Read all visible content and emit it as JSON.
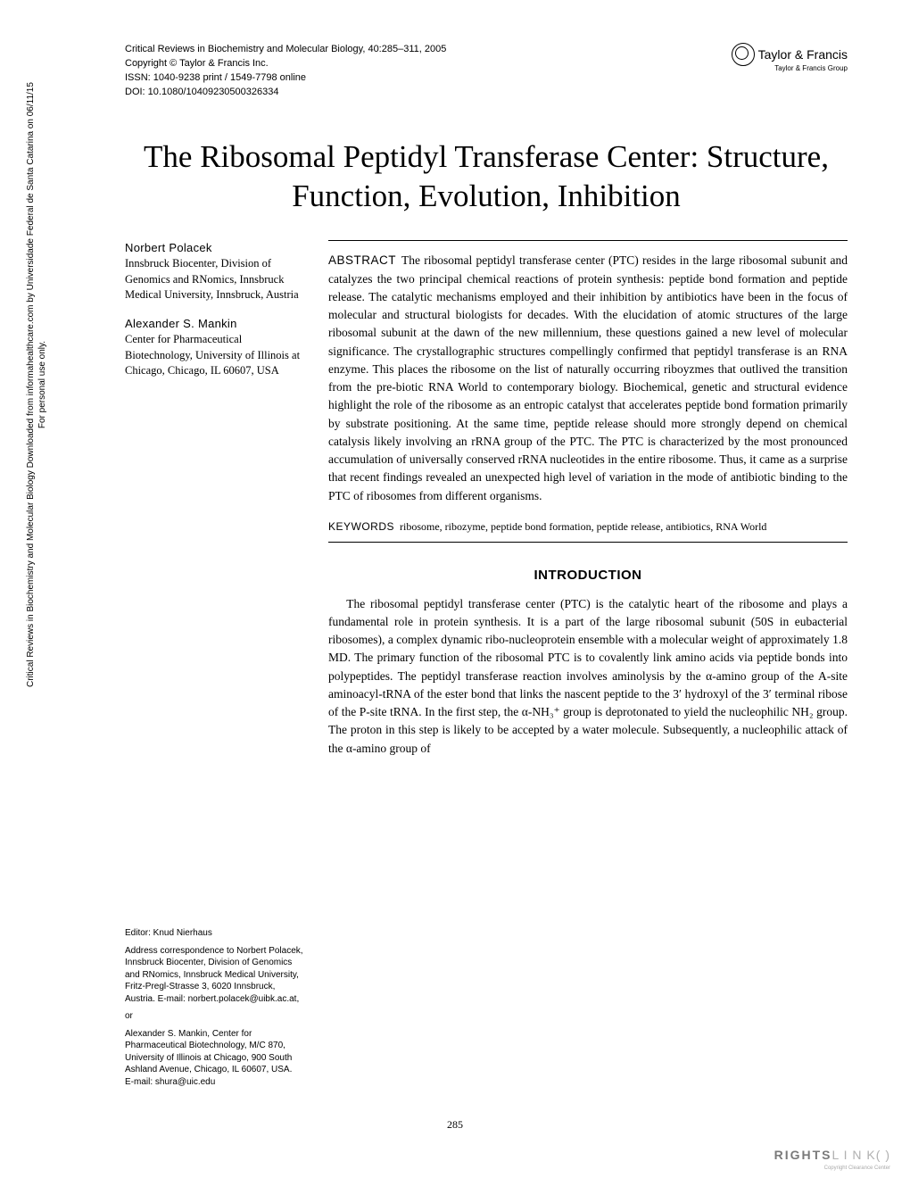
{
  "header": {
    "journal_line": "Critical Reviews in Biochemistry and Molecular Biology, 40:285–311, 2005",
    "copyright_line": "Copyright © Taylor & Francis Inc.",
    "issn_line": "ISSN: 1040-9238 print / 1549-7798 online",
    "doi_line": "DOI: 10.1080/10409230500326334"
  },
  "publisher": {
    "name": "Taylor & Francis",
    "sub": "Taylor & Francis Group"
  },
  "vertical_note": {
    "line1": "Critical Reviews in Biochemistry and Molecular Biology Downloaded from informahealthcare.com by Universidade Federal de Santa Catarina on 06/11/15",
    "line2": "For personal use only."
  },
  "title": "The Ribosomal Peptidyl Transferase Center: Structure, Function, Evolution, Inhibition",
  "authors": [
    {
      "name": "Norbert Polacek",
      "affil": "Innsbruck Biocenter, Division of Genomics and RNomics, Innsbruck Medical University, Innsbruck, Austria"
    },
    {
      "name": "Alexander S. Mankin",
      "affil": "Center for Pharmaceutical Biotechnology, University of Illinois at Chicago, Chicago, IL 60607, USA"
    }
  ],
  "abstract": {
    "label": "ABSTRACT",
    "text": "The ribosomal peptidyl transferase center (PTC) resides in the large ribosomal subunit and catalyzes the two principal chemical reactions of protein synthesis: peptide bond formation and peptide release. The catalytic mechanisms employed and their inhibition by antibiotics have been in the focus of molecular and structural biologists for decades. With the elucidation of atomic structures of the large ribosomal subunit at the dawn of the new millennium, these questions gained a new level of molecular significance. The crystallographic structures compellingly confirmed that peptidyl transferase is an RNA enzyme. This places the ribosome on the list of naturally occurring riboyzmes that outlived the transition from the pre-biotic RNA World to contemporary biology. Biochemical, genetic and structural evidence highlight the role of the ribosome as an entropic catalyst that accelerates peptide bond formation primarily by substrate positioning. At the same time, peptide release should more strongly depend on chemical catalysis likely involving an rRNA group of the PTC. The PTC is characterized by the most pronounced accumulation of universally conserved rRNA nucleotides in the entire ribosome. Thus, it came as a surprise that recent findings revealed an unexpected high level of variation in the mode of antibiotic binding to the PTC of ribosomes from different organisms."
  },
  "keywords": {
    "label": "KEYWORDS",
    "text": "ribosome, ribozyme, peptide bond formation, peptide release, antibiotics, RNA World"
  },
  "intro": {
    "heading": "INTRODUCTION",
    "body": "The ribosomal peptidyl transferase center (PTC) is the catalytic heart of the ribosome and plays a fundamental role in protein synthesis. It is a part of the large ribosomal subunit (50S in eubacterial ribosomes), a complex dynamic ribo-nucleoprotein ensemble with a molecular weight of approximately 1.8 MD. The primary function of the ribosomal PTC is to covalently link amino acids via peptide bonds into polypeptides. The peptidyl transferase reaction involves aminolysis by the α-amino group of the A-site aminoacyl-tRNA of the ester bond that links the nascent peptide to the 3′ hydroxyl of the 3′ terminal ribose of the P-site tRNA. In the first step, the α-NH₃⁺ group is deprotonated to yield the nucleophilic NH₂ group. The proton in this step is likely to be accepted by a water molecule. Subsequently, a nucleophilic attack of the α-amino group of"
  },
  "editor": {
    "line": "Editor: Knud Nierhaus",
    "corr1": "Address correspondence to Norbert Polacek, Innsbruck Biocenter, Division of Genomics and RNomics, Innsbruck Medical University, Fritz-Pregl-Strasse 3, 6020 Innsbruck, Austria. E-mail: norbert.polacek@uibk.ac.at,",
    "or": "or",
    "corr2": "Alexander S. Mankin, Center for Pharmaceutical Biotechnology, M/C 870, University of Illinois at Chicago, 900 South Ashland Avenue, Chicago, IL 60607, USA. E-mail: shura@uic.edu"
  },
  "page_number": "285",
  "rightslink": {
    "main": "RIGHTS",
    "link": "L I N K( )",
    "sub": "Copyright Clearance Center"
  }
}
